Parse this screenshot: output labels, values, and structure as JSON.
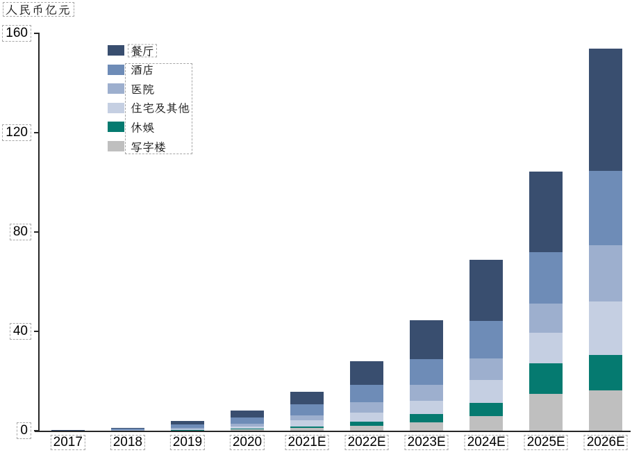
{
  "page": {
    "background_color": "#ffffff",
    "annotation_box_color": "#a6a6a6"
  },
  "chart_data": {
    "type": "bar",
    "stacked": true,
    "unit_label": "人民币亿元",
    "categories": [
      "2017",
      "2018",
      "2019",
      "2020",
      "2021E",
      "2022E",
      "2023E",
      "2024E",
      "2025E",
      "2026E"
    ],
    "series": [
      {
        "name": "餐厅",
        "color": "#394E6F",
        "values": [
          0.15,
          0.35,
          1.4,
          2.7,
          5.0,
          9.4,
          15.4,
          24.6,
          32.3,
          49.1
        ]
      },
      {
        "name": "酒店",
        "color": "#6E8CB7",
        "values": [
          0.1,
          0.6,
          1.4,
          2.5,
          4.4,
          6.9,
          10.5,
          15.1,
          20.7,
          30.0
        ]
      },
      {
        "name": "医院",
        "color": "#9DAFCE",
        "values": [
          0.05,
          0.15,
          0.5,
          1.1,
          1.9,
          4.2,
          6.3,
          8.6,
          11.8,
          22.5
        ]
      },
      {
        "name": "住宅及其他",
        "color": "#C5CFE2",
        "values": [
          0.05,
          0.1,
          0.5,
          0.9,
          2.6,
          3.8,
          5.5,
          9.4,
          12.3,
          21.5
        ]
      },
      {
        "name": "休娱",
        "color": "#057A70",
        "values": [
          0.02,
          0.05,
          0.2,
          0.4,
          0.5,
          1.6,
          3.1,
          5.1,
          12.2,
          14.3
        ]
      },
      {
        "name": "写字楼",
        "color": "#BFBFBF",
        "values": [
          0.03,
          0.05,
          0.1,
          0.6,
          1.3,
          2.1,
          3.6,
          6.1,
          15.0,
          16.3
        ]
      }
    ],
    "stack_order": "first series on top, last series at bottom",
    "ylabel": "",
    "xlabel": "",
    "y_axis": {
      "ticks": [
        0,
        40,
        80,
        120,
        160
      ],
      "range": [
        0,
        160
      ]
    },
    "legend_position": "top-left",
    "grid": false,
    "axis_color": "#262626"
  }
}
